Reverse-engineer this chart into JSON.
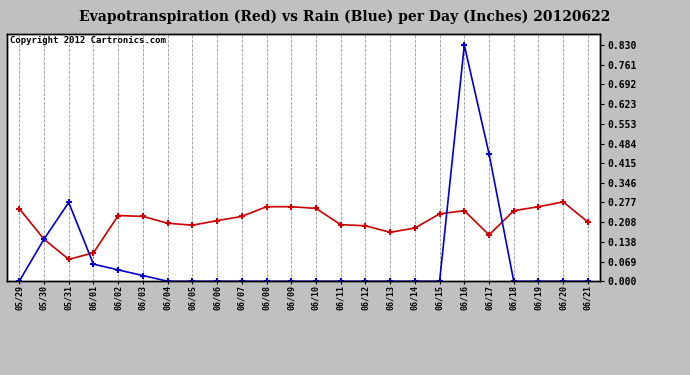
{
  "title": "Evapotranspiration (Red) vs Rain (Blue) per Day (Inches) 20120622",
  "copyright": "Copyright 2012 Cartronics.com",
  "x_labels": [
    "05/29",
    "05/30",
    "05/31",
    "06/01",
    "06/02",
    "06/03",
    "06/04",
    "06/05",
    "06/06",
    "06/07",
    "06/08",
    "06/09",
    "06/10",
    "06/11",
    "06/12",
    "06/13",
    "06/14",
    "06/15",
    "06/16",
    "06/17",
    "06/18",
    "06/19",
    "06/20",
    "06/21"
  ],
  "red_data": [
    0.255,
    0.148,
    0.077,
    0.1,
    0.231,
    0.228,
    0.204,
    0.197,
    0.213,
    0.228,
    0.262,
    0.262,
    0.256,
    0.199,
    0.195,
    0.172,
    0.187,
    0.237,
    0.248,
    0.163,
    0.248,
    0.262,
    0.279,
    0.208
  ],
  "blue_data": [
    0.0,
    0.148,
    0.277,
    0.06,
    0.04,
    0.02,
    0.0,
    0.0,
    0.0,
    0.0,
    0.0,
    0.0,
    0.0,
    0.0,
    0.0,
    0.0,
    0.0,
    0.0,
    0.83,
    0.448,
    0.0,
    0.0,
    0.0,
    0.0
  ],
  "y_ticks": [
    0.0,
    0.069,
    0.138,
    0.208,
    0.277,
    0.346,
    0.415,
    0.484,
    0.553,
    0.623,
    0.692,
    0.761,
    0.83
  ],
  "y_max": 0.87,
  "y_min": 0.0,
  "bg_color": "#c0c0c0",
  "plot_bg_color": "#ffffff",
  "grid_color": "#999999",
  "red_color": "#cc0000",
  "blue_color": "#0000cc",
  "title_fontsize": 10,
  "copyright_fontsize": 6.5
}
